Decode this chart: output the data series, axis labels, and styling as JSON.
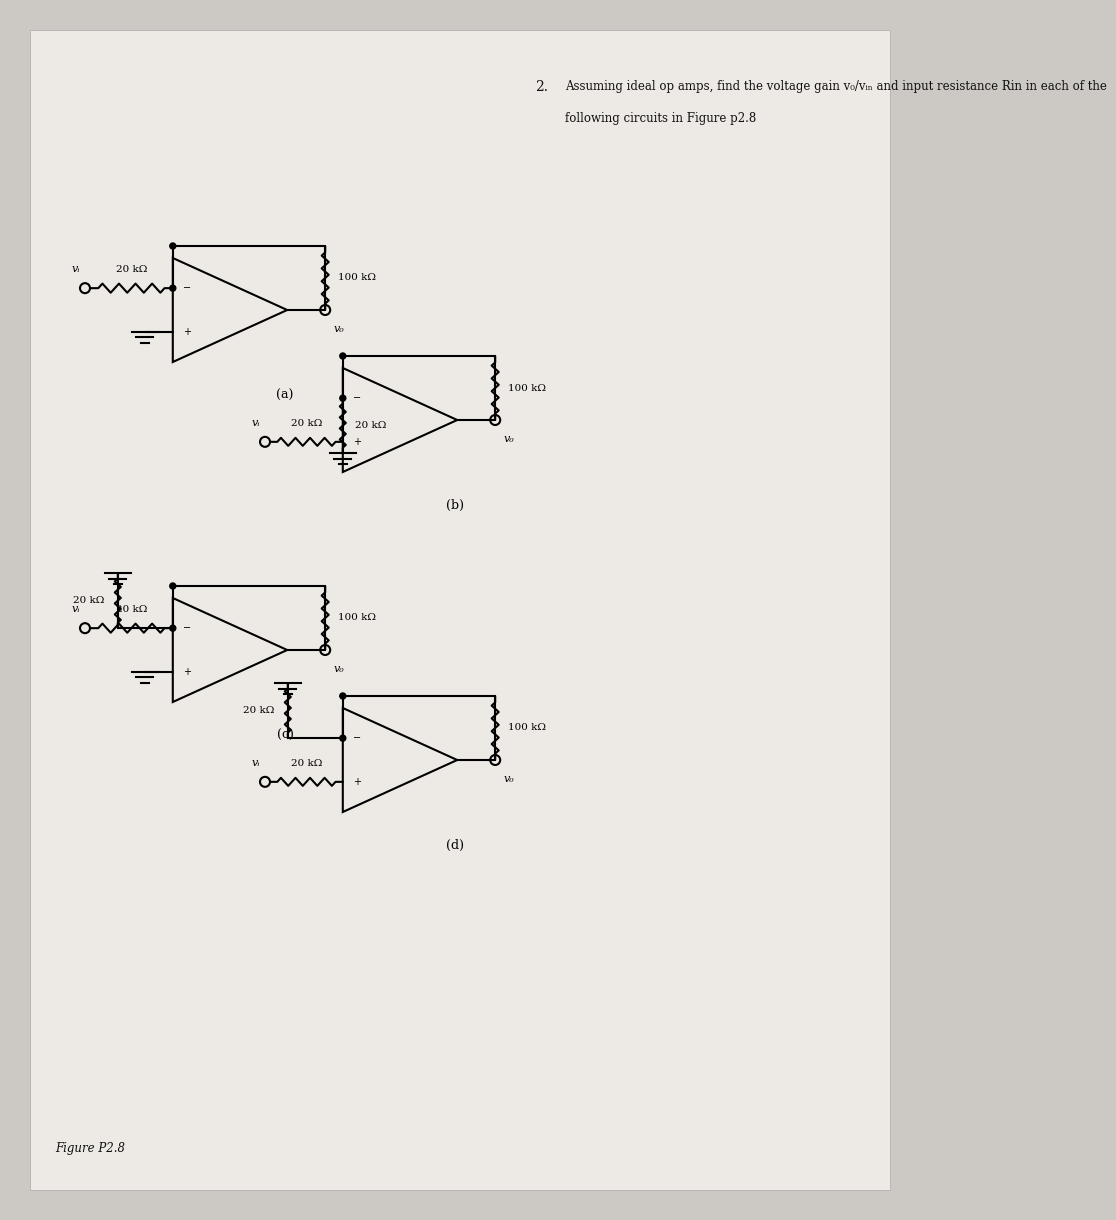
{
  "bg_color": "#ccc8c4",
  "paper_bg": "#ede9e4",
  "line_color": "#000000",
  "text_color": "#111111",
  "figure_label": "Figure P2.8",
  "title_line1": "Assuming ideal op amps, find the voltage gain v₀/vᵢₙ and input resistance Rin in each of the",
  "title_line2": "following circuits in Figure p2.8",
  "problem_num": "2.",
  "circuit_labels": [
    "(a)",
    "(b)",
    "(c)",
    "(d)"
  ],
  "r20": "20 kΩ",
  "r100": "100 kΩ",
  "vin_label": "vᵢ",
  "vo_label": "v₀"
}
